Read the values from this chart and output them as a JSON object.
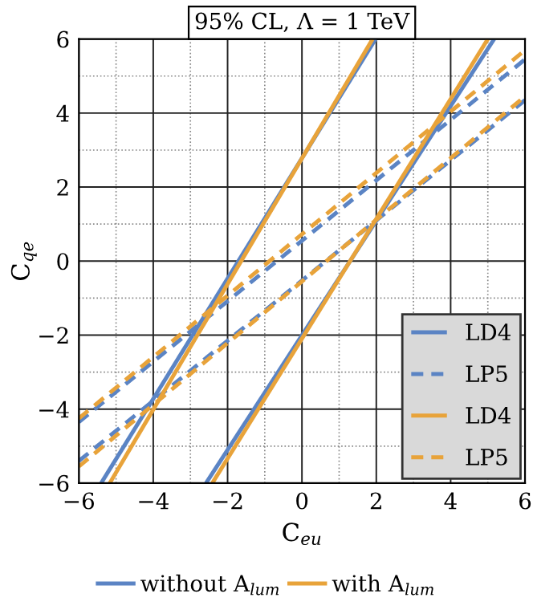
{
  "chart_data": {
    "type": "line",
    "title": "95% CL, Λ = 1 TeV",
    "xlabel": "C$_{eu}$",
    "ylabel": "C$_{qe}$",
    "xlim": [
      -6,
      6
    ],
    "ylim": [
      -6,
      6
    ],
    "xticks": [
      -6,
      -4,
      -2,
      0,
      2,
      4,
      6
    ],
    "yticks": [
      -6,
      -4,
      -2,
      0,
      2,
      4,
      6
    ],
    "grid": true,
    "legend": "lower right",
    "marker": "none",
    "annotations": [
      "without A$_{lum}$",
      "with A$_{lum}$"
    ],
    "series": [
      {
        "name": "LD4",
        "color": "#5b84c4",
        "line_style": "solid",
        "x": [
          -5.4,
          1.98
        ],
        "values": [
          -6,
          6
        ]
      },
      {
        "color": "#5b84c4",
        "line_style": "solid",
        "x": [
          -2.58,
          5.17
        ],
        "values": [
          -6,
          6
        ]
      },
      {
        "name": "LP5",
        "color": "#5b84c4",
        "line_style": "dashed",
        "x": [
          -6,
          6
        ],
        "values": [
          -4.35,
          5.45
        ]
      },
      {
        "color": "#5b84c4",
        "line_style": "dashed",
        "x": [
          -6,
          6
        ],
        "values": [
          -5.4,
          4.35
        ]
      },
      {
        "name": "LD4",
        "color": "#e8a33a",
        "line_style": "solid",
        "x": [
          -5.17,
          1.9
        ],
        "values": [
          -6,
          6
        ]
      },
      {
        "color": "#e8a33a",
        "line_style": "solid",
        "x": [
          -2.41,
          5.0
        ],
        "values": [
          -6,
          6
        ]
      },
      {
        "name": "LP5",
        "color": "#e8a33a",
        "line_style": "dashed",
        "x": [
          -6,
          6
        ],
        "values": [
          -4.25,
          5.7
        ]
      },
      {
        "color": "#e8a33a",
        "line_style": "dashed",
        "x": [
          -6,
          6
        ],
        "values": [
          -5.55,
          4.45
        ]
      }
    ]
  }
}
